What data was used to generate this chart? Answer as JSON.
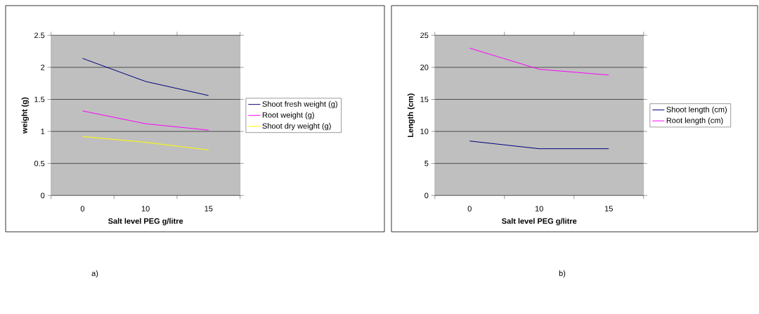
{
  "chart_data": [
    {
      "type": "line",
      "xlabel": "Salt level PEG g/litre",
      "ylabel": "weight (g)",
      "categories": [
        "0",
        "10",
        "15"
      ],
      "series": [
        {
          "name": "Shoot fresh weight (g)",
          "color": "#000080",
          "values": [
            2.14,
            1.78,
            1.56
          ]
        },
        {
          "name": "Root weight (g)",
          "color": "#ff00ff",
          "values": [
            1.32,
            1.12,
            1.02
          ]
        },
        {
          "name": "Shoot dry weight (g)",
          "color": "#ffff00",
          "values": [
            0.92,
            0.83,
            0.71
          ]
        }
      ],
      "ylim": [
        0,
        2.5
      ],
      "yticks": [
        0,
        0.5,
        1,
        1.5,
        2,
        2.5
      ],
      "grid": "y",
      "legend": "right",
      "annotations": [
        "a)"
      ]
    },
    {
      "type": "line",
      "xlabel": "Salt level PEG g/litre",
      "ylabel": "Length (cm)",
      "categories": [
        "0",
        "10",
        "15"
      ],
      "series": [
        {
          "name": "Shoot length (cm)",
          "color": "#000080",
          "values": [
            8.5,
            7.3,
            7.3
          ]
        },
        {
          "name": "Root length (cm)",
          "color": "#ff00ff",
          "values": [
            23.0,
            19.7,
            18.8
          ]
        }
      ],
      "ylim": [
        0,
        25
      ],
      "yticks": [
        0,
        5,
        10,
        15,
        20,
        25
      ],
      "grid": "y",
      "legend": "right",
      "annotations": [
        "b)"
      ]
    }
  ]
}
